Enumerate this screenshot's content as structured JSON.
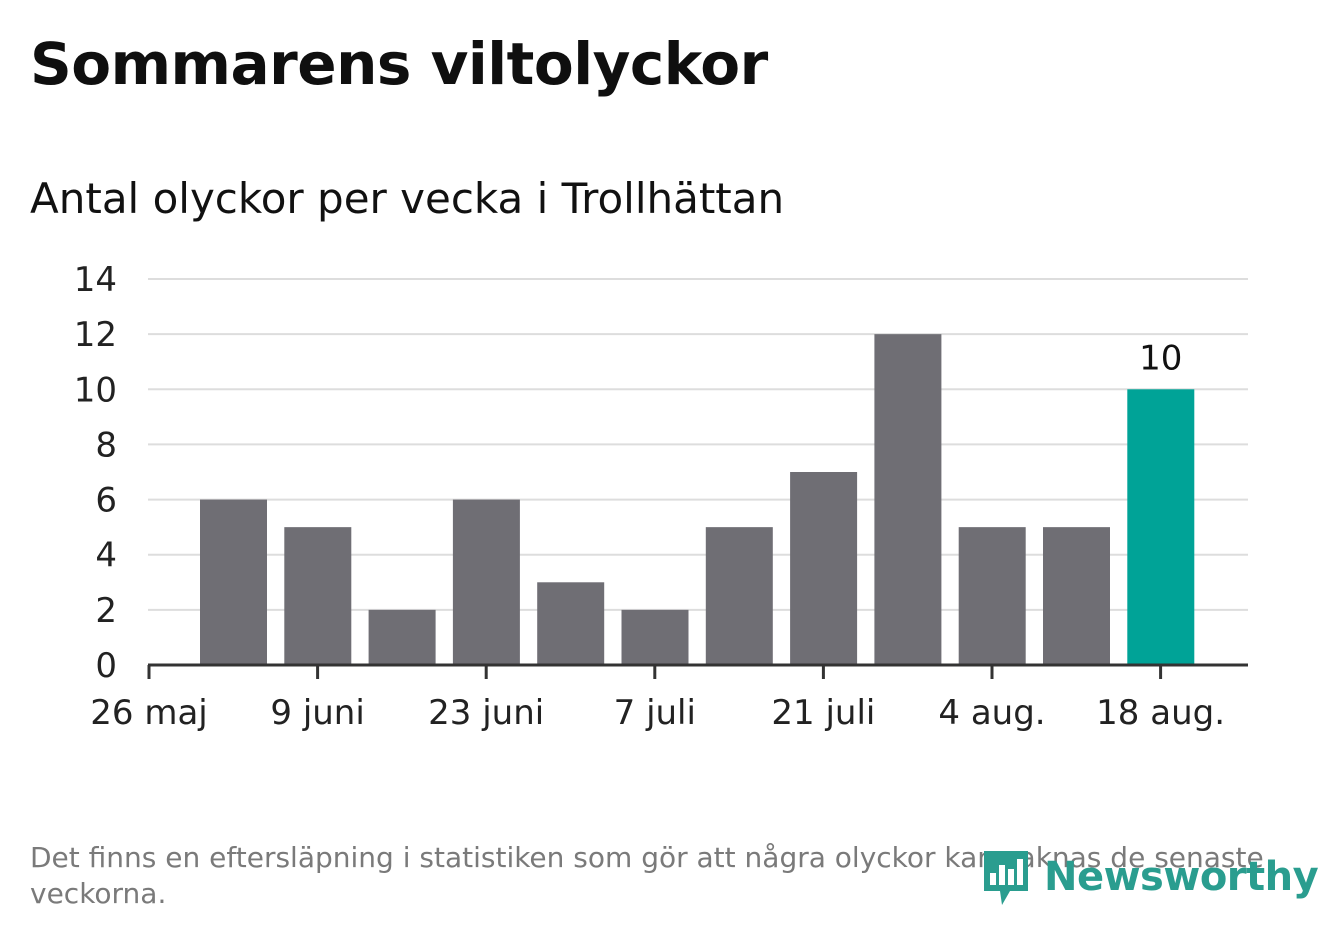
{
  "title": "Sommarens viltolyckor",
  "subtitle": "Antal olyckor per vecka i Trollhättan",
  "footnote": "Det finns en eftersläpning i statistiken som gör att några olyckor kan saknas de senaste veckorna.",
  "logo_text": "Newsworthy",
  "colors": {
    "bar": "#6f6e74",
    "highlight": "#00a397",
    "grid": "#dddddd",
    "axis": "#333333",
    "logo": "#2a9d8f"
  },
  "chart_data": {
    "type": "bar",
    "x_tick_labels": [
      "26 maj",
      "9 juni",
      "23 juni",
      "7 juli",
      "21 juli",
      "4 aug.",
      "18 aug."
    ],
    "ylim": [
      0,
      14
    ],
    "yticks": [
      0,
      2,
      4,
      6,
      8,
      10,
      12,
      14
    ],
    "grid": "horizontal",
    "values": [
      6,
      5,
      2,
      6,
      3,
      2,
      5,
      7,
      12,
      5,
      5,
      10
    ],
    "highlight_index": 11,
    "data_labels": [
      {
        "index": 11,
        "text": "10"
      }
    ]
  }
}
